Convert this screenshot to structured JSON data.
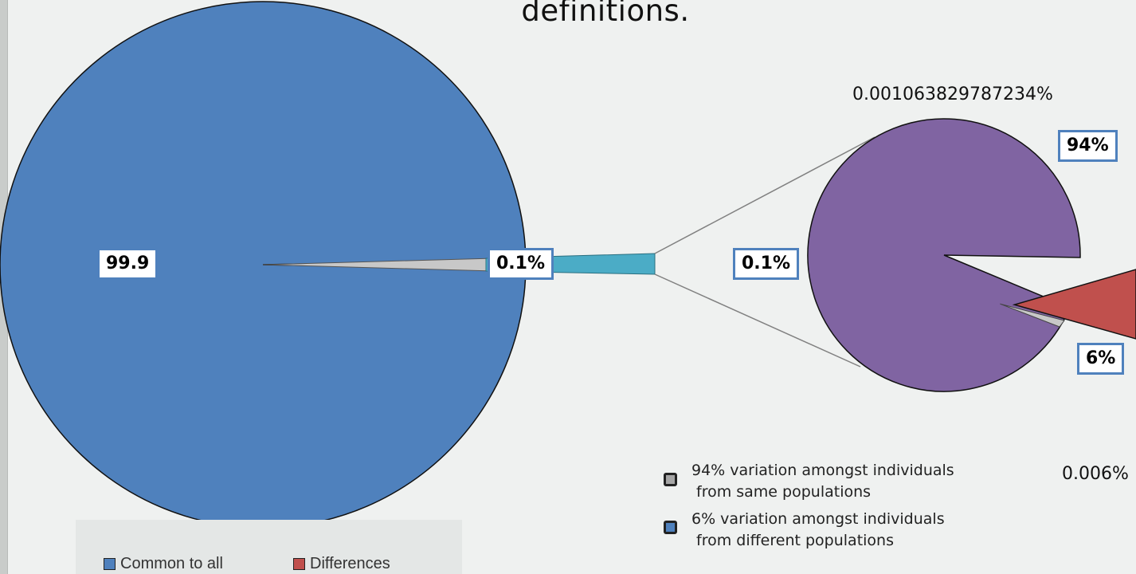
{
  "title_fragment": "definitions.",
  "annotations": {
    "top_right_percent": "0.001063829787234%",
    "small_percent": "0.006%"
  },
  "chart_data": [
    {
      "type": "pie",
      "slices": [
        {
          "label": "Common to all",
          "value": 99.9,
          "color": "#4f81bd",
          "data_label": "99.9"
        },
        {
          "label": "Differences",
          "value": 0.1,
          "color": "#4bacc6",
          "data_label": "0.1%"
        }
      ],
      "legend": [
        "Common to all",
        "Differences"
      ],
      "legend_position": "bottom-left"
    },
    {
      "type": "pie",
      "slices": [
        {
          "label": "variation amongst individuals from same populations",
          "value": 94,
          "color": "#8064a2",
          "data_label": "94%"
        },
        {
          "label": "variation amongst individuals from different populations",
          "value": 6,
          "color": "#c0504d",
          "data_label": "6%"
        }
      ],
      "center_label": "0.1%"
    }
  ],
  "legend_colors": {
    "common": "#4f81bd",
    "differences": "#c0504d",
    "note_bullet_1": "#a6a6a6",
    "note_bullet_2": "#4f81bd"
  },
  "notes": [
    {
      "line1": "94% variation amongst individuals",
      "line2": "from same populations"
    },
    {
      "line1": "6% variation amongst individuals",
      "line2": "from different populations"
    }
  ]
}
